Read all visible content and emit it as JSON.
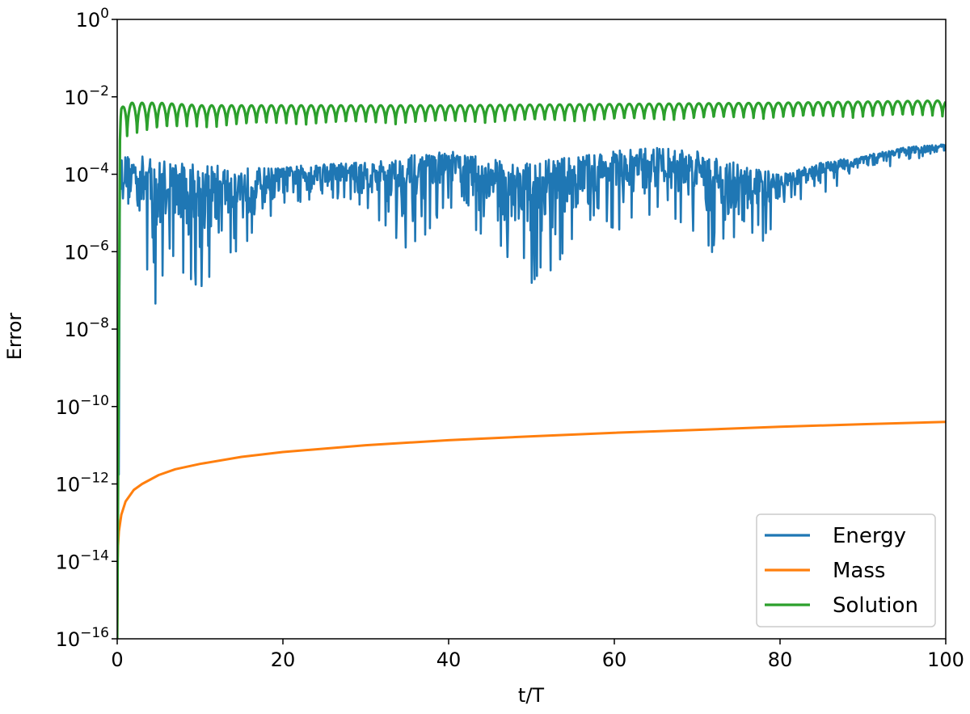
{
  "chart_data": {
    "type": "line",
    "xlabel": "t/T",
    "ylabel": "Error",
    "xlim": [
      0,
      100
    ],
    "ylim_exponents": [
      -16,
      0
    ],
    "yscale": "log",
    "grid": false,
    "legend_position": "lower-right",
    "x_ticks": [
      0,
      20,
      40,
      60,
      80,
      100
    ],
    "y_ticks": [
      {
        "base": "10",
        "exp": "0"
      },
      {
        "base": "10",
        "exp": "−2"
      },
      {
        "base": "10",
        "exp": "−4"
      },
      {
        "base": "10",
        "exp": "−6"
      },
      {
        "base": "10",
        "exp": "−8"
      },
      {
        "base": "10",
        "exp": "−10"
      },
      {
        "base": "10",
        "exp": "−12"
      },
      {
        "base": "10",
        "exp": "−14"
      },
      {
        "base": "10",
        "exp": "−16"
      }
    ],
    "series": [
      {
        "name": "Energy",
        "color": "#1f77b4",
        "x": [
          0,
          0.5,
          1,
          2,
          3,
          4,
          5,
          6,
          8,
          10,
          15,
          20,
          25,
          30,
          35,
          40,
          45,
          50,
          55,
          60,
          65,
          70,
          75,
          80,
          85,
          90,
          95,
          100
        ],
        "y_upper": [
          0.0003,
          0.0003,
          0.0003,
          0.0003,
          0.0003,
          0.0003,
          0.00025,
          0.00025,
          0.0002,
          0.0002,
          0.00015,
          0.00015,
          0.0002,
          0.0002,
          0.0003,
          0.0004,
          0.00025,
          0.0002,
          0.0003,
          0.0004,
          0.0005,
          0.0004,
          0.0002,
          0.0001,
          0.0002,
          0.0003,
          0.0005,
          0.0006
        ],
        "y_lower": [
          1e-16,
          1e-05,
          5e-06,
          2e-06,
          1e-06,
          1e-07,
          1e-08,
          1e-06,
          1e-07,
          1e-07,
          1e-06,
          1e-05,
          2e-05,
          1e-05,
          1e-06,
          1e-05,
          1e-06,
          1e-07,
          1e-06,
          3e-06,
          1e-05,
          3e-06,
          1e-07,
          1e-05,
          3e-05,
          0.0001,
          0.0002,
          0.0003
        ]
      },
      {
        "name": "Mass",
        "color": "#ff7f0e",
        "x": [
          0,
          0.05,
          0.1,
          0.2,
          0.5,
          1,
          2,
          3,
          5,
          7,
          10,
          15,
          20,
          30,
          40,
          50,
          60,
          70,
          80,
          90,
          100
        ],
        "y": [
          1e-16,
          1e-14,
          2.5e-14,
          6e-14,
          1.6e-13,
          3.5e-13,
          7e-13,
          1e-12,
          1.7e-12,
          2.4e-12,
          3.3e-12,
          5e-12,
          6.7e-12,
          1e-11,
          1.35e-11,
          1.7e-11,
          2.1e-11,
          2.5e-11,
          3e-11,
          3.5e-11,
          4e-11
        ]
      },
      {
        "name": "Solution",
        "color": "#2ca02c",
        "x": [
          0,
          0.5,
          1,
          5,
          10,
          20,
          40,
          60,
          80,
          100
        ],
        "y_upper": [
          0.001,
          0.005,
          0.007,
          0.007,
          0.006,
          0.006,
          0.006,
          0.0065,
          0.007,
          0.008
        ],
        "y_lower": [
          1e-16,
          0.001,
          0.0008,
          0.0012,
          0.0015,
          0.0018,
          0.002,
          0.0023,
          0.0027,
          0.003
        ]
      }
    ]
  }
}
